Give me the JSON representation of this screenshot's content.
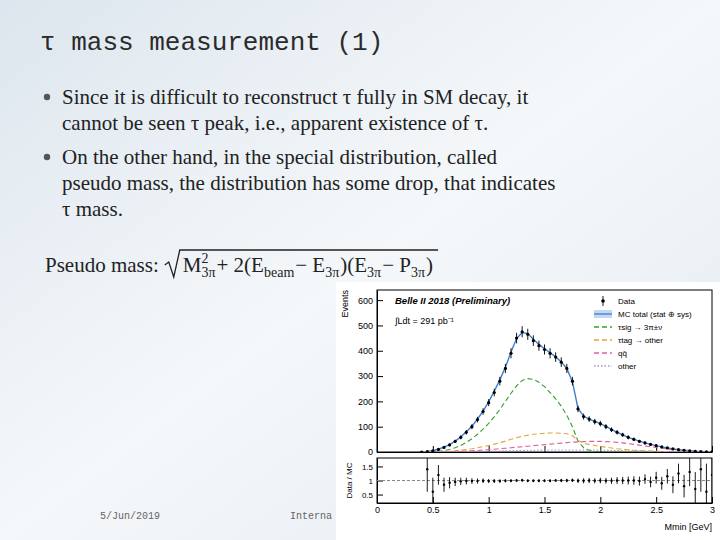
{
  "slide": {
    "title": "τ mass measurement (1)",
    "bullets": [
      [
        "Since it is difficult to reconstruct τ fully in SM decay, it",
        "cannot be seen τ peak, i.e., apparent existence of τ."
      ],
      [
        "On the other hand, in the special distribution, called",
        "pseudo mass, the distribution has some drop, that indicates",
        "τ mass."
      ]
    ],
    "formula_label": "Pseudo mass:",
    "formula": [
      {
        "text": "M",
        "sub": "3π",
        "sup": "2"
      },
      {
        "text": " + 2(E",
        "sub": "beam"
      },
      {
        "text": " − E",
        "sub": "3π"
      },
      {
        "text": ")(E",
        "sub": "3π"
      },
      {
        "text": " − P",
        "sub": "3π"
      },
      {
        "text": ")"
      }
    ],
    "footer": {
      "date": "5/Jun/2019",
      "text": "Interna"
    }
  },
  "chart_data": [
    {
      "type": "line",
      "title": "Belle II 2018 (Preliminary)",
      "annotations": [
        "∫Ldt = 291 pb⁻¹"
      ],
      "ylabel": "Events",
      "x": [
        0.4,
        0.45,
        0.5,
        0.55,
        0.6,
        0.65,
        0.7,
        0.75,
        0.8,
        0.85,
        0.9,
        0.95,
        1.0,
        1.05,
        1.1,
        1.15,
        1.2,
        1.25,
        1.3,
        1.35,
        1.4,
        1.45,
        1.5,
        1.55,
        1.6,
        1.65,
        1.7,
        1.75,
        1.8,
        1.85,
        1.9,
        1.95,
        2.0,
        2.05,
        2.1,
        2.15,
        2.2,
        2.25,
        2.3,
        2.35,
        2.4,
        2.45,
        2.5,
        2.55,
        2.6,
        2.65,
        2.7,
        2.75,
        2.8,
        2.85,
        2.9,
        2.95,
        3.0
      ],
      "series": [
        {
          "name": "Data",
          "type": "scatter",
          "marker": "circle",
          "color": "#000000",
          "values": [
            0,
            2,
            5,
            10,
            18,
            28,
            42,
            58,
            78,
            100,
            128,
            160,
            195,
            235,
            280,
            330,
            390,
            450,
            475,
            465,
            440,
            420,
            405,
            390,
            375,
            355,
            330,
            280,
            170,
            140,
            130,
            120,
            112,
            100,
            88,
            78,
            68,
            58,
            50,
            42,
            36,
            30,
            25,
            20,
            16,
            12,
            9,
            7,
            5,
            3,
            2,
            1,
            1
          ],
          "errors": [
            0,
            1,
            2,
            3,
            4,
            5,
            6,
            8,
            9,
            10,
            11,
            13,
            14,
            15,
            17,
            18,
            20,
            21,
            22,
            22,
            21,
            20,
            20,
            20,
            19,
            19,
            18,
            17,
            13,
            12,
            11,
            11,
            11,
            10,
            9,
            9,
            8,
            8,
            7,
            6,
            6,
            5,
            5,
            4,
            4,
            3,
            3,
            3,
            2,
            2,
            1,
            1,
            1
          ]
        },
        {
          "name": "MC total (stat ⊕ sys)",
          "type": "line",
          "line_style": "solid",
          "color": "#3a7fd0",
          "values": [
            0,
            2,
            5,
            11,
            19,
            29,
            43,
            59,
            80,
            102,
            130,
            162,
            198,
            240,
            285,
            335,
            395,
            448,
            472,
            468,
            445,
            425,
            408,
            392,
            376,
            356,
            330,
            278,
            172,
            142,
            130,
            121,
            112,
            101,
            89,
            78,
            68,
            58,
            50,
            43,
            36,
            30,
            25,
            20,
            16,
            12,
            9,
            7,
            5,
            3,
            2,
            1,
            1
          ]
        },
        {
          "name": "τsig → 3π±ν",
          "type": "line",
          "line_style": "dashed",
          "color": "#33a02c",
          "values": [
            0,
            0,
            1,
            3,
            6,
            10,
            17,
            26,
            38,
            52,
            70,
            90,
            113,
            139,
            168,
            200,
            232,
            261,
            283,
            290,
            287,
            276,
            258,
            235,
            210,
            181,
            145,
            100,
            43,
            17,
            7,
            3,
            1,
            0,
            0,
            0,
            0,
            0,
            0,
            0,
            0,
            0,
            0,
            0,
            0,
            0,
            0,
            0,
            0,
            0,
            0,
            0,
            0
          ]
        },
        {
          "name": "τtag → other",
          "type": "line",
          "line_style": "dashed",
          "color": "#e6a23c",
          "values": [
            0,
            0,
            0,
            1,
            2,
            3,
            5,
            7,
            10,
            13,
            17,
            21,
            26,
            31,
            37,
            43,
            50,
            56,
            62,
            66,
            70,
            72,
            74,
            75,
            75,
            74,
            72,
            65,
            45,
            35,
            30,
            26,
            22,
            19,
            16,
            13,
            11,
            9,
            7,
            6,
            5,
            4,
            3,
            2,
            2,
            1,
            1,
            1,
            0,
            0,
            0,
            0,
            0
          ]
        },
        {
          "name": "qq̄",
          "type": "line",
          "line_style": "dashed",
          "color": "#e0609a",
          "values": [
            0,
            0,
            0,
            0,
            1,
            1,
            2,
            3,
            4,
            5,
            6,
            8,
            9,
            11,
            13,
            15,
            17,
            19,
            21,
            23,
            25,
            27,
            29,
            31,
            33,
            35,
            37,
            39,
            40,
            41,
            42,
            42,
            42,
            41,
            40,
            38,
            36,
            33,
            30,
            27,
            24,
            21,
            18,
            15,
            12,
            10,
            8,
            6,
            4,
            3,
            2,
            1,
            1
          ]
        },
        {
          "name": "other",
          "type": "line",
          "line_style": "dotted",
          "color": "#a896c8",
          "values": [
            0,
            0,
            0,
            0,
            0,
            0,
            1,
            1,
            1,
            2,
            2,
            3,
            3,
            4,
            4,
            5,
            5,
            6,
            6,
            7,
            7,
            7,
            8,
            8,
            8,
            8,
            8,
            8,
            8,
            8,
            8,
            8,
            7,
            7,
            6,
            6,
            5,
            5,
            4,
            4,
            3,
            3,
            2,
            2,
            2,
            1,
            1,
            1,
            1,
            0,
            0,
            0,
            0
          ]
        }
      ],
      "xlim": [
        0,
        3
      ],
      "ylim": [
        0,
        640
      ],
      "xticks": [
        0,
        0.5,
        1,
        1.5,
        2,
        2.5,
        3
      ],
      "yticks": [
        0,
        100,
        200,
        300,
        400,
        500,
        600
      ],
      "legend": "upper right",
      "tick_labels": "y"
    },
    {
      "type": "scatter",
      "ylabel": "Data / MC",
      "xlabel": "Mmin [GeV]",
      "x": [
        0.4,
        0.45,
        0.5,
        0.55,
        0.6,
        0.65,
        0.7,
        0.75,
        0.8,
        0.85,
        0.9,
        0.95,
        1.0,
        1.05,
        1.1,
        1.15,
        1.2,
        1.25,
        1.3,
        1.35,
        1.4,
        1.45,
        1.5,
        1.55,
        1.6,
        1.65,
        1.7,
        1.75,
        1.8,
        1.85,
        1.9,
        1.95,
        2.0,
        2.05,
        2.1,
        2.15,
        2.2,
        2.25,
        2.3,
        2.35,
        2.4,
        2.45,
        2.5,
        2.55,
        2.6,
        2.65,
        2.7,
        2.75,
        2.8,
        2.85,
        2.9,
        2.95,
        3.0
      ],
      "series": [
        {
          "type": "scatter",
          "marker": "circle",
          "color": "#000000",
          "values": [
            null,
            1.4,
            0.6,
            1.2,
            0.85,
            0.92,
            0.95,
            0.97,
            0.98,
            0.98,
            0.98,
            0.99,
            0.98,
            0.98,
            0.98,
            0.99,
            0.99,
            1.0,
            1.01,
            0.99,
            0.99,
            0.99,
            0.99,
            0.99,
            1.0,
            1.0,
            1.0,
            1.01,
            0.99,
            0.99,
            1.0,
            0.99,
            1.0,
            0.99,
            0.99,
            1.0,
            1.0,
            1.0,
            1.0,
            0.98,
            1.05,
            0.95,
            1.1,
            0.9,
            1.15,
            0.85,
            1.25,
            0.8,
            1.3,
            0.7,
            1.4,
            0.6,
            1.2
          ],
          "errors": [
            null,
            0.8,
            0.5,
            0.35,
            0.25,
            0.2,
            0.15,
            0.13,
            0.12,
            0.1,
            0.09,
            0.08,
            0.07,
            0.07,
            0.06,
            0.06,
            0.05,
            0.05,
            0.05,
            0.05,
            0.05,
            0.05,
            0.05,
            0.05,
            0.05,
            0.06,
            0.06,
            0.06,
            0.08,
            0.09,
            0.09,
            0.09,
            0.1,
            0.1,
            0.11,
            0.12,
            0.13,
            0.14,
            0.15,
            0.16,
            0.17,
            0.19,
            0.21,
            0.23,
            0.26,
            0.3,
            0.35,
            0.4,
            0.5,
            0.6,
            0.8,
            1.0,
            1.0
          ]
        }
      ],
      "xlim": [
        0,
        3
      ],
      "ylim": [
        0.2,
        1.8
      ],
      "xticks": [
        0,
        0.5,
        1,
        1.5,
        2,
        2.5,
        3
      ],
      "yticks": [
        0.5,
        1,
        1.5
      ],
      "reference_line": 1
    }
  ]
}
